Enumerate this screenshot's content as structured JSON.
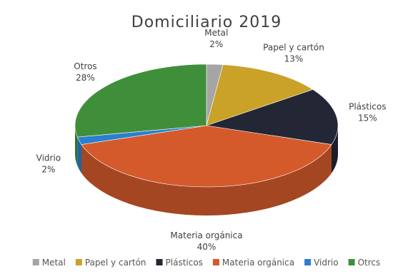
{
  "chart_data": {
    "type": "pie",
    "title": "Domiciliario 2019",
    "slices": [
      {
        "name": "Metal",
        "label": "Metal",
        "value": 2,
        "value_label": "2%",
        "color": "#a5a5a5"
      },
      {
        "name": "Papel y cartón",
        "label": "Papel y cartón",
        "value": 13,
        "value_label": "13%",
        "color": "#c9a227"
      },
      {
        "name": "Plásticos",
        "label": "Plásticos",
        "value": 15,
        "value_label": "15%",
        "color": "#232735"
      },
      {
        "name": "Materia orgánica",
        "label": "Materia orgánica",
        "value": 40,
        "value_label": "40%",
        "color": "#d45a2c"
      },
      {
        "name": "Vidrio",
        "label": "Vidrio",
        "value": 2,
        "value_label": "2%",
        "color": "#2a7fce"
      },
      {
        "name": "Otros",
        "label": "Otros",
        "value": 28,
        "value_label": "28%",
        "color": "#3f8f3a"
      }
    ],
    "legend": {
      "position": "bottom",
      "entries": [
        "Metal",
        "Papel y cartón",
        "Plásticos",
        "Materia orgánica",
        "Vidrio",
        "Otrcs"
      ]
    },
    "style": "3d"
  }
}
